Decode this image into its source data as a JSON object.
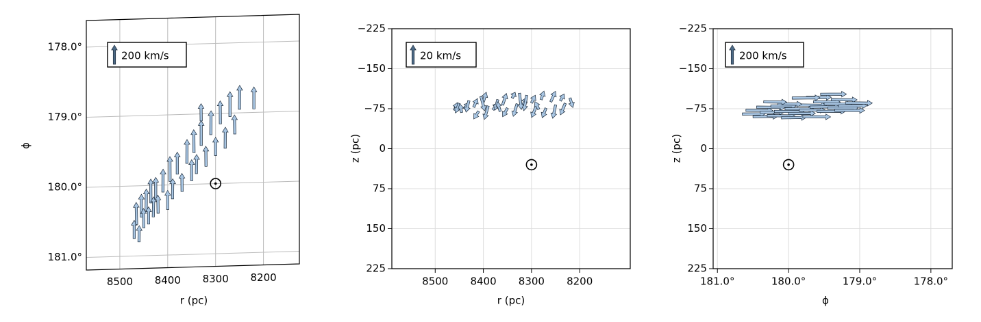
{
  "chart_data": [
    {
      "type": "quiver",
      "xlabel": "r (pc)",
      "ylabel": "ϕ",
      "grid": true,
      "tick_marks": false,
      "color": "#a9c6e3",
      "edgecolor": "#1b2a3a",
      "key_color": "#4d6a86",
      "xlim": [
        8570,
        8125
      ],
      "ylim": [
        177.62,
        181.18
      ],
      "xticks": [
        8500,
        8400,
        8300,
        8200
      ],
      "yticks": [
        {
          "value": 178,
          "label": "178.0°"
        },
        {
          "value": 179,
          "label": "179.0°"
        },
        {
          "value": 180,
          "label": "180.0°"
        },
        {
          "value": 181,
          "label": "181.0°"
        }
      ],
      "key": {
        "label": "200 km/s",
        "value": 200
      },
      "sun": [
        8300,
        180
      ],
      "x": [
        8470,
        8465,
        8460,
        8455,
        8450,
        8445,
        8440,
        8435,
        8430,
        8425,
        8420,
        8410,
        8400,
        8395,
        8390,
        8380,
        8370,
        8360,
        8350,
        8345,
        8340,
        8330,
        8320,
        8310,
        8300,
        8290,
        8280,
        8270,
        8260,
        8250,
        8220,
        8330
      ],
      "y": [
        180.75,
        180.55,
        180.8,
        180.45,
        180.6,
        180.35,
        180.55,
        180.25,
        180.45,
        180.2,
        180.4,
        180.1,
        180.35,
        179.95,
        180.2,
        179.85,
        180.1,
        179.7,
        179.95,
        179.55,
        179.85,
        179.45,
        179.75,
        179.3,
        179.6,
        179.15,
        179.5,
        179.05,
        179.3,
        178.95,
        178.95,
        179.1
      ],
      "u": [
        0,
        -4,
        3,
        0,
        -3,
        2,
        0,
        -2,
        3,
        0,
        -3,
        2,
        0,
        -2,
        3,
        0,
        -2,
        2,
        0,
        -3,
        2,
        0,
        -2,
        3,
        0,
        -2,
        2,
        0,
        -3,
        2,
        0,
        -2
      ],
      "v": [
        190,
        230,
        170,
        240,
        200,
        220,
        180,
        250,
        210,
        230,
        190,
        240,
        200,
        260,
        210,
        230,
        190,
        250,
        220,
        240,
        200,
        260,
        210,
        250,
        190,
        240,
        220,
        260,
        200,
        250,
        230,
        180
      ]
    },
    {
      "type": "quiver",
      "xlabel": "r (pc)",
      "ylabel": "z (pc)",
      "grid": true,
      "tick_marks": true,
      "color": "#a9c6e3",
      "edgecolor": "#1b2a3a",
      "key_color": "#4d6a86",
      "xlim": [
        8590,
        8095
      ],
      "ylim": [
        -225,
        225
      ],
      "xticks": [
        8500,
        8400,
        8300,
        8200
      ],
      "yticks": [
        {
          "value": -225,
          "label": "−225"
        },
        {
          "value": -150,
          "label": "−150"
        },
        {
          "value": -75,
          "label": "−75"
        },
        0,
        75,
        150,
        225
      ],
      "key": {
        "label": "20 km/s",
        "value": 20
      },
      "sun": [
        8300,
        30
      ],
      "x": [
        8460,
        8450,
        8440,
        8430,
        8420,
        8410,
        8400,
        8390,
        8380,
        8370,
        8360,
        8350,
        8340,
        8330,
        8320,
        8310,
        8300,
        8290,
        8280,
        8270,
        8260,
        8250,
        8240,
        8230,
        8220,
        8445,
        8405,
        8365,
        8325,
        8285
      ],
      "y": [
        -72,
        -85,
        -75,
        -90,
        -78,
        -70,
        -88,
        -80,
        -73,
        -92,
        -82,
        -76,
        -95,
        -84,
        -78,
        -100,
        -86,
        -80,
        -92,
        -76,
        -88,
        -82,
        -90,
        -85,
        -95,
        -68,
        -98,
        -70,
        -104,
        -74
      ],
      "u": [
        3,
        -4,
        5,
        -3,
        4,
        -5,
        3,
        -4,
        5,
        -3,
        4,
        -5,
        3,
        -4,
        5,
        -3,
        4,
        -5,
        3,
        -4,
        5,
        -3,
        4,
        -5,
        3,
        -2,
        4,
        -3,
        2,
        -4
      ],
      "v": [
        8,
        -10,
        6,
        -12,
        9,
        -8,
        10,
        -14,
        7,
        -11,
        12,
        -9,
        6,
        -13,
        10,
        -16,
        8,
        -12,
        9,
        -10,
        11,
        -14,
        7,
        -12,
        -10,
        9,
        -15,
        10,
        -17,
        8
      ]
    },
    {
      "type": "quiver",
      "xlabel": "ϕ",
      "ylabel": "z (pc)",
      "grid": true,
      "tick_marks": true,
      "color": "#a9c6e3",
      "edgecolor": "#1b2a3a",
      "key_color": "#4d6a86",
      "xlim": [
        181.06,
        177.7
      ],
      "ylim": [
        -225,
        225
      ],
      "xticks": [
        {
          "value": 181,
          "label": "181.0°"
        },
        {
          "value": 180,
          "label": "180.0°"
        },
        {
          "value": 179,
          "label": "179.0°"
        },
        {
          "value": 178,
          "label": "178.0°"
        }
      ],
      "yticks": [
        {
          "value": -225,
          "label": "−225"
        },
        {
          "value": -150,
          "label": "−150"
        },
        {
          "value": -75,
          "label": "−75"
        },
        0,
        75,
        150,
        225
      ],
      "key": {
        "label": "200 km/s",
        "value": 200
      },
      "sun": [
        180,
        30
      ],
      "x": [
        180.65,
        180.6,
        180.5,
        180.45,
        180.4,
        180.3,
        180.25,
        180.2,
        180.1,
        180.05,
        180.0,
        179.9,
        179.85,
        179.8,
        179.7,
        179.65,
        179.6,
        179.5,
        179.45,
        179.4,
        179.3,
        179.2,
        179.75,
        180.15,
        179.55,
        180.35,
        179.95,
        179.35
      ],
      "y": [
        -65,
        -72,
        -60,
        -78,
        -68,
        -62,
        -80,
        -70,
        -58,
        -75,
        -66,
        -82,
        -72,
        -60,
        -78,
        -88,
        -70,
        -84,
        -76,
        -92,
        -80,
        -86,
        -96,
        -84,
        -102,
        -88,
        -95,
        -72
      ],
      "u": [
        240,
        280,
        260,
        300,
        250,
        290,
        270,
        310,
        260,
        300,
        280,
        320,
        270,
        290,
        310,
        280,
        300,
        290,
        320,
        270,
        300,
        280,
        260,
        250,
        270,
        240,
        290,
        310
      ],
      "v": [
        3,
        -2,
        4,
        -3,
        2,
        -4,
        3,
        -2,
        4,
        -3,
        2,
        -4,
        3,
        -2,
        4,
        -3,
        2,
        -4,
        3,
        -2,
        4,
        -3,
        2,
        -3,
        2,
        -4,
        3,
        -2
      ]
    }
  ]
}
